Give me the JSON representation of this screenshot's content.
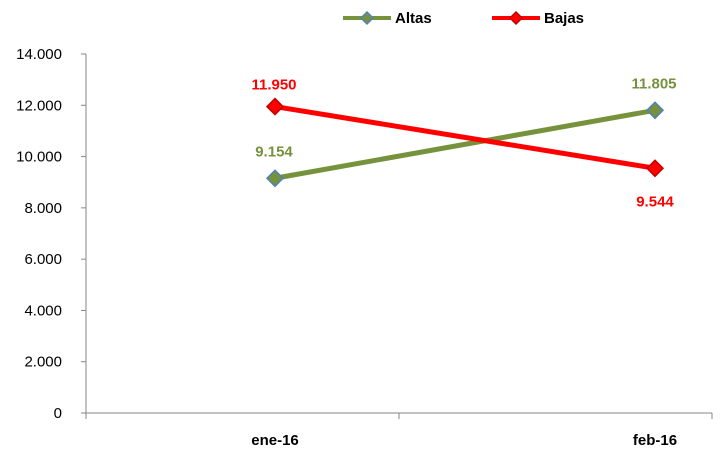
{
  "chart_data": {
    "type": "line",
    "categories": [
      "ene-16",
      "feb-16"
    ],
    "series": [
      {
        "name": "Altas",
        "values": [
          9154,
          11805
        ],
        "labels": [
          "9.154",
          "11.805"
        ],
        "color": "#76923C",
        "marker_color": "#4F81BD"
      },
      {
        "name": "Bajas",
        "values": [
          11950,
          9544
        ],
        "labels": [
          "11.950",
          "9.544"
        ],
        "color": "#FF0000",
        "marker_color": "#C00000"
      }
    ],
    "y_ticks": [
      0,
      2000,
      4000,
      6000,
      8000,
      10000,
      12000,
      14000
    ],
    "y_tick_labels": [
      "0",
      "2.000",
      "4.000",
      "6.000",
      "8.000",
      "10.000",
      "12.000",
      "14.000"
    ],
    "ylim": [
      0,
      14000
    ],
    "grid": false,
    "legend_position": "top"
  }
}
